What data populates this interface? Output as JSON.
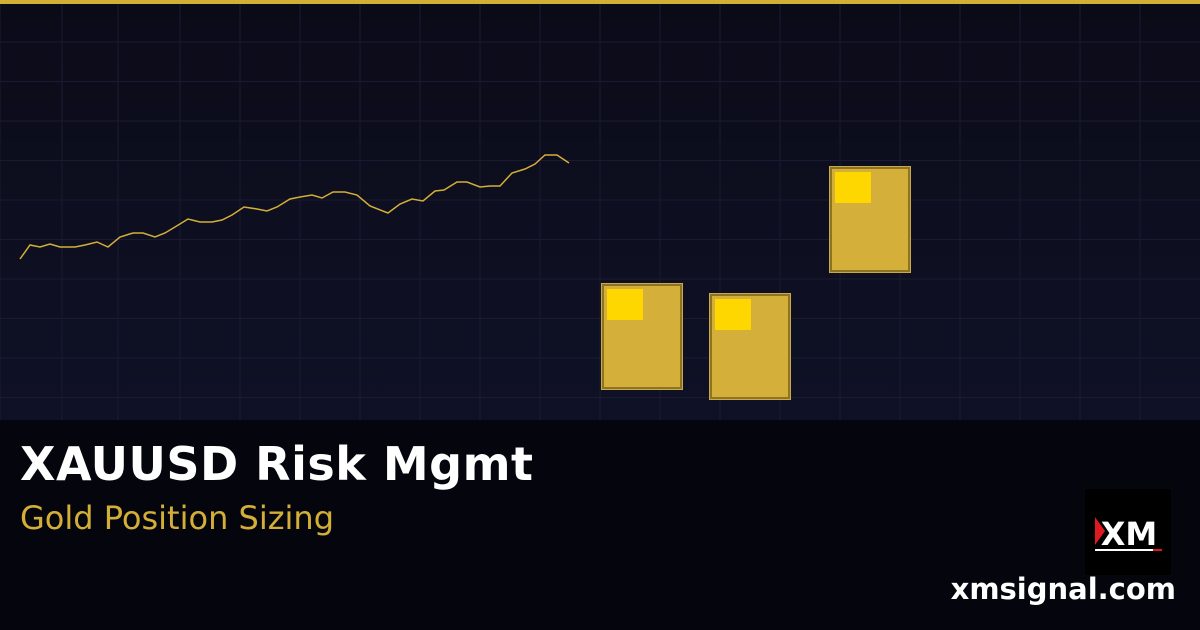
{
  "header": {
    "accent_color": "#d4af37"
  },
  "hero": {
    "title": "XAUUSD Risk Mgmt",
    "subtitle": "Gold Position Sizing",
    "site": "xmsignal.com",
    "logo_text": "XM"
  },
  "graphic": {
    "line_color": "#d4af37",
    "gold_bar_color": "#d4b03a",
    "gold_bar_highlight": "#ffd700",
    "gold_bar_count": 3
  }
}
